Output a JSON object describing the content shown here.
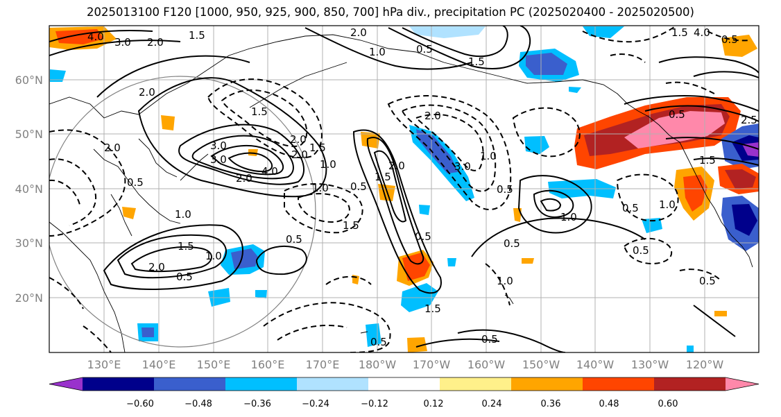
{
  "title": "2025013100 F120 [1000, 950, 925, 900, 850, 700] hPa div., precipitation PC (2025020400 - 2025020500)",
  "lat_labels": [
    "60°N",
    "50°N",
    "40°N",
    "30°N",
    "20°N"
  ],
  "lon_labels": [
    "130°E",
    "140°E",
    "150°E",
    "160°E",
    "170°E",
    "180°W",
    "170°W",
    "160°W",
    "150°W",
    "140°W",
    "130°W",
    "120°W"
  ],
  "colorbar": {
    "tick_labels": [
      "−0.60",
      "−0.48",
      "−0.36",
      "−0.24",
      "−0.12",
      "0.12",
      "0.24",
      "0.36",
      "0.48",
      "0.60"
    ],
    "colors": [
      "#9932cc",
      "#00008b",
      "#3a5fcd",
      "#00bfff",
      "#b0e2ff",
      "#ffffff",
      "#fff08a",
      "#ffa500",
      "#ff4500",
      "#b22222",
      "#ff88aa"
    ]
  },
  "contour_labels": [
    "4.0",
    "3.0",
    "2.0",
    "1.5",
    "2.0",
    "3.0",
    "1.5",
    "2.0",
    "3.0",
    "2.0",
    "4.0",
    "2.0",
    "1.5",
    "1.0",
    "0.5",
    "1.0",
    "1.5",
    "2.0",
    "0.5",
    "0.5",
    "1.0",
    "1.5",
    "2.0",
    "0.5",
    "1.0",
    "3.0",
    "2.0",
    "1.0",
    "1.5",
    "2.0",
    "0.5",
    "1.0",
    "0.5",
    "0.5",
    "1.0",
    "0.5",
    "0.5",
    "0.5",
    "1.5",
    "0.5",
    "1.0",
    "0.5",
    "0.5",
    "2.0",
    "1.0",
    "1.5",
    "2.5",
    "1.5",
    "4.0",
    "0.5",
    "0.5",
    "1.5"
  ]
}
